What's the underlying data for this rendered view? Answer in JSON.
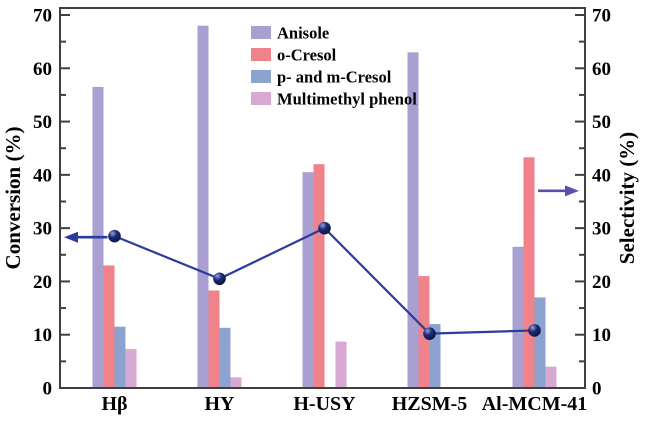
{
  "chart_data": {
    "type": "bar",
    "title": "",
    "categories": [
      "Hβ",
      "HY",
      "H-USY",
      "HZSM-5",
      "Al-MCM-41"
    ],
    "series": [
      {
        "name": "Anisole",
        "color": "#a99fd1",
        "values": [
          56.5,
          68.0,
          40.5,
          63.0,
          26.5
        ]
      },
      {
        "name": "o-Cresol",
        "color": "#f0828a",
        "values": [
          23.0,
          18.3,
          42.0,
          21.0,
          43.3
        ]
      },
      {
        "name": "p- and m-Cresol",
        "color": "#8ca3cf",
        "values": [
          11.5,
          11.3,
          0.0,
          12.0,
          17.0
        ]
      },
      {
        "name": "Multimethyl phenol",
        "color": "#d7a9d2",
        "values": [
          7.3,
          2.0,
          8.7,
          0.0,
          4.0
        ]
      }
    ],
    "line_series": {
      "values": [
        28.5,
        20.5,
        30.0,
        10.2,
        10.8
      ],
      "color": "#2b3c9c",
      "marker_color": "#1b2a72",
      "marker_highlight": "#93a0e0"
    },
    "y_left": {
      "label": "Conversion (%)",
      "min": 0,
      "max": 70,
      "tick_step": 10,
      "minor_step": 5,
      "ticks": [
        "0",
        "10",
        "20",
        "30",
        "40",
        "50",
        "60",
        "70"
      ]
    },
    "y_right": {
      "label": "Selectivity (%)",
      "min": 0,
      "max": 70,
      "tick_step": 10,
      "minor_step": 5,
      "ticks": [
        "0",
        "10",
        "20",
        "30",
        "40",
        "50",
        "60",
        "70"
      ]
    },
    "legend_position": "upper-middle-left",
    "grid": false,
    "annotations": [
      {
        "type": "arrow",
        "direction": "left",
        "at_value": 28.3,
        "color": "#2b3c9c"
      },
      {
        "type": "arrow",
        "direction": "right",
        "at_value": 37.0,
        "color": "#5b4fae"
      }
    ],
    "frame_color": "#3f3f3f",
    "text_color": "#000000"
  }
}
